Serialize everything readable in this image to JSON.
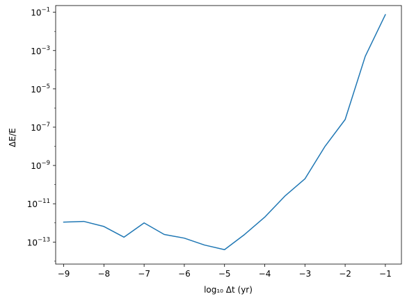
{
  "chart_data": {
    "type": "line",
    "title": "",
    "xlabel": "log₁₀ Δt (yr)",
    "ylabel": "ΔE/E",
    "x_log": false,
    "y_log": true,
    "xlim": [
      -9.2,
      -0.6
    ],
    "ylim_exp": [
      -14.15,
      -0.65
    ],
    "grid": false,
    "legend": "none",
    "color": "#1f77b4",
    "x_ticks": [
      {
        "value": -9,
        "label": "−9"
      },
      {
        "value": -8,
        "label": "−8"
      },
      {
        "value": -7,
        "label": "−7"
      },
      {
        "value": -6,
        "label": "−6"
      },
      {
        "value": -5,
        "label": "−5"
      },
      {
        "value": -4,
        "label": "−4"
      },
      {
        "value": -3,
        "label": "−3"
      },
      {
        "value": -2,
        "label": "−2"
      },
      {
        "value": -1,
        "label": "−1"
      }
    ],
    "y_ticks": [
      {
        "exp": -13,
        "base": "10",
        "power": "−13"
      },
      {
        "exp": -11,
        "base": "10",
        "power": "−11"
      },
      {
        "exp": -9,
        "base": "10",
        "power": "−9"
      },
      {
        "exp": -7,
        "base": "10",
        "power": "−7"
      },
      {
        "exp": -5,
        "base": "10",
        "power": "−5"
      },
      {
        "exp": -3,
        "base": "10",
        "power": "−3"
      },
      {
        "exp": -1,
        "base": "10",
        "power": "−1"
      }
    ],
    "series": [
      {
        "x": [
          -9,
          -8.5,
          -8,
          -7.5,
          -7,
          -6.5,
          -6,
          -5.5,
          -5,
          -4.5,
          -4,
          -3.5,
          -3,
          -2.5,
          -2,
          -1.5,
          -1
        ],
        "y": [
          1.1e-12,
          1.2e-12,
          6.5e-13,
          1.8e-13,
          1e-12,
          2.5e-13,
          1.6e-13,
          7e-14,
          4e-14,
          2.5e-13,
          2e-12,
          2.5e-11,
          2e-10,
          1e-08,
          2.5e-07,
          0.0005,
          0.075
        ]
      }
    ]
  }
}
